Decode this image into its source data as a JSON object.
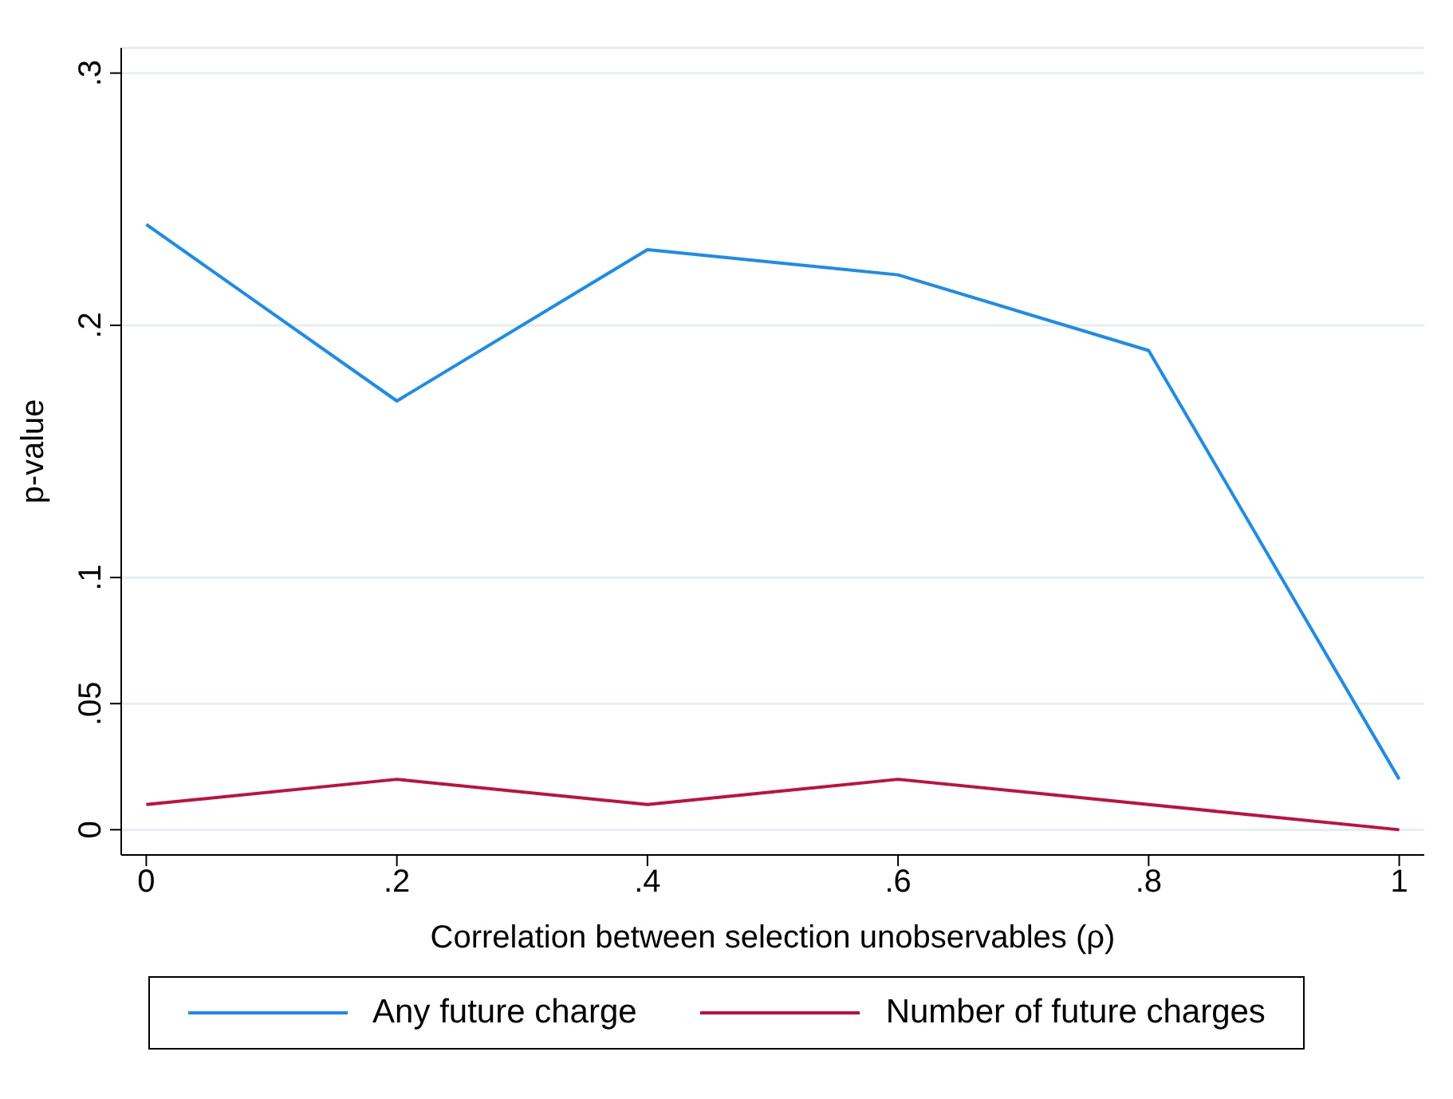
{
  "chart_data": {
    "type": "line",
    "xlabel": "Correlation between selection unobservables (ρ)",
    "ylabel": "p-value",
    "x": [
      0,
      0.2,
      0.4,
      0.6,
      0.8,
      1
    ],
    "series": [
      {
        "name": "Any future charge",
        "color": "#1a8cf0",
        "values": [
          0.24,
          0.17,
          0.23,
          0.22,
          0.19,
          0.02
        ]
      },
      {
        "name": "Number of future charges",
        "color": "#c0103f",
        "values": [
          0.01,
          0.02,
          0.01,
          0.02,
          0.01,
          0
        ]
      }
    ],
    "xlim": [
      -0.02,
      1.02
    ],
    "ylim": [
      -0.01,
      0.31
    ],
    "xticks": [
      {
        "value": 0,
        "label": "0"
      },
      {
        "value": 0.2,
        "label": ".2"
      },
      {
        "value": 0.4,
        "label": ".4"
      },
      {
        "value": 0.6,
        "label": ".6"
      },
      {
        "value": 0.8,
        "label": ".8"
      },
      {
        "value": 1,
        "label": "1"
      }
    ],
    "yticks": [
      {
        "value": 0,
        "label": "0"
      },
      {
        "value": 0.05,
        "label": ".05"
      },
      {
        "value": 0.1,
        "label": ".1"
      },
      {
        "value": 0.2,
        "label": ".2"
      },
      {
        "value": 0.3,
        "label": ".3"
      }
    ],
    "grid": "y",
    "legend": "bottom",
    "marker": "none",
    "line_style": "solid"
  }
}
